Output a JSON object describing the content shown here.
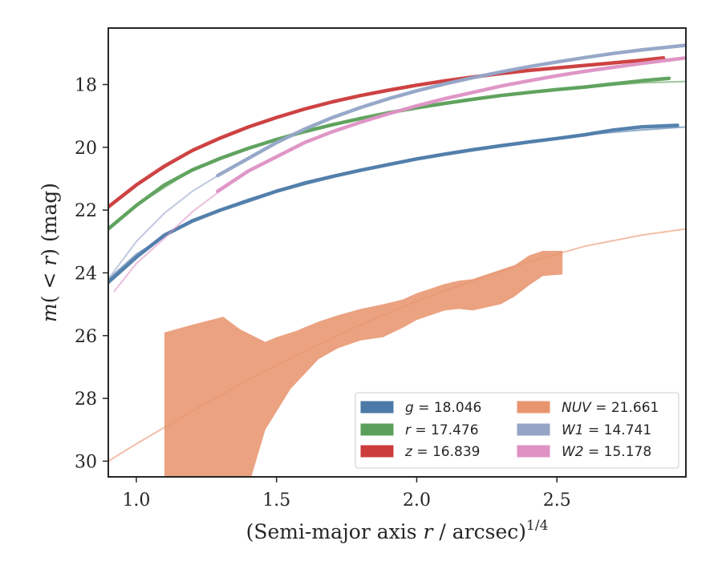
{
  "chart_data": {
    "type": "line",
    "xlabel": "(Semi-major axis r / arcsec)^{1/4}",
    "xlabel_parts": {
      "prefix": "(Semi-major axis ",
      "var": "r",
      "suffix": " / arcsec)",
      "exp": "1/4"
    },
    "ylabel": "m(<r) (mag)",
    "ylabel_parts": {
      "m": "m",
      "open": "(",
      "lt": " < ",
      "r": "r",
      "close": ")",
      "unit": " (mag)"
    },
    "xlim": [
      0.9,
      2.96
    ],
    "ylim": [
      30.5,
      16.2
    ],
    "y_inverted": true,
    "xticks": [
      1.0,
      1.5,
      2.0,
      2.5
    ],
    "xtick_labels": [
      "1.0",
      "1.5",
      "2.0",
      "2.5"
    ],
    "yticks": [
      18,
      20,
      22,
      24,
      26,
      28,
      30
    ],
    "ytick_labels": [
      "18",
      "20",
      "22",
      "24",
      "26",
      "28",
      "30"
    ],
    "grid": false,
    "legend_position": "lower-right",
    "series": [
      {
        "name": "g = 18.046",
        "band": "g",
        "value": "18.046",
        "color": "#4c7aa8",
        "data": [
          [
            0.9,
            24.3
          ],
          [
            1.0,
            23.5
          ],
          [
            1.1,
            22.8
          ],
          [
            1.2,
            22.35
          ],
          [
            1.3,
            22.0
          ],
          [
            1.4,
            21.7
          ],
          [
            1.5,
            21.4
          ],
          [
            1.6,
            21.15
          ],
          [
            1.7,
            20.93
          ],
          [
            1.8,
            20.73
          ],
          [
            1.9,
            20.55
          ],
          [
            2.0,
            20.37
          ],
          [
            2.1,
            20.22
          ],
          [
            2.2,
            20.08
          ],
          [
            2.3,
            19.95
          ],
          [
            2.4,
            19.83
          ],
          [
            2.5,
            19.72
          ],
          [
            2.6,
            19.6
          ],
          [
            2.7,
            19.45
          ],
          [
            2.8,
            19.35
          ],
          [
            2.93,
            19.3
          ]
        ],
        "model": [
          [
            0.9,
            24.2
          ],
          [
            1.0,
            23.4
          ],
          [
            1.2,
            22.3
          ],
          [
            1.4,
            21.65
          ],
          [
            1.6,
            21.1
          ],
          [
            1.8,
            20.7
          ],
          [
            2.0,
            20.35
          ],
          [
            2.2,
            20.05
          ],
          [
            2.4,
            19.8
          ],
          [
            2.6,
            19.6
          ],
          [
            2.8,
            19.45
          ],
          [
            2.96,
            19.35
          ]
        ]
      },
      {
        "name": "r = 17.476",
        "band": "r",
        "value": "17.476",
        "color": "#5ba05a",
        "data": [
          [
            0.9,
            22.6
          ],
          [
            1.0,
            21.85
          ],
          [
            1.1,
            21.2
          ],
          [
            1.2,
            20.72
          ],
          [
            1.3,
            20.35
          ],
          [
            1.4,
            20.03
          ],
          [
            1.5,
            19.75
          ],
          [
            1.6,
            19.5
          ],
          [
            1.7,
            19.28
          ],
          [
            1.8,
            19.08
          ],
          [
            1.9,
            18.9
          ],
          [
            2.0,
            18.74
          ],
          [
            2.1,
            18.6
          ],
          [
            2.2,
            18.47
          ],
          [
            2.3,
            18.35
          ],
          [
            2.4,
            18.25
          ],
          [
            2.5,
            18.16
          ],
          [
            2.6,
            18.08
          ],
          [
            2.7,
            17.98
          ],
          [
            2.8,
            17.88
          ],
          [
            2.9,
            17.8
          ]
        ],
        "model": [
          [
            0.9,
            22.6
          ],
          [
            1.0,
            21.85
          ],
          [
            1.2,
            20.72
          ],
          [
            1.4,
            20.03
          ],
          [
            1.6,
            19.5
          ],
          [
            1.8,
            19.08
          ],
          [
            2.0,
            18.74
          ],
          [
            2.2,
            18.47
          ],
          [
            2.4,
            18.25
          ],
          [
            2.6,
            18.08
          ],
          [
            2.8,
            17.95
          ],
          [
            2.96,
            17.9
          ]
        ]
      },
      {
        "name": "z = 16.839",
        "band": "z",
        "value": "16.839",
        "color": "#cc3c3c",
        "data": [
          [
            0.9,
            21.9
          ],
          [
            1.0,
            21.2
          ],
          [
            1.1,
            20.6
          ],
          [
            1.2,
            20.1
          ],
          [
            1.3,
            19.7
          ],
          [
            1.4,
            19.35
          ],
          [
            1.5,
            19.05
          ],
          [
            1.6,
            18.78
          ],
          [
            1.7,
            18.55
          ],
          [
            1.8,
            18.35
          ],
          [
            1.9,
            18.18
          ],
          [
            2.0,
            18.02
          ],
          [
            2.1,
            17.88
          ],
          [
            2.2,
            17.76
          ],
          [
            2.3,
            17.65
          ],
          [
            2.4,
            17.55
          ],
          [
            2.5,
            17.47
          ],
          [
            2.6,
            17.39
          ],
          [
            2.7,
            17.31
          ],
          [
            2.8,
            17.23
          ],
          [
            2.88,
            17.15
          ]
        ],
        "model": [
          [
            0.9,
            21.9
          ],
          [
            1.0,
            21.2
          ],
          [
            1.2,
            20.1
          ],
          [
            1.4,
            19.35
          ],
          [
            1.6,
            18.78
          ],
          [
            1.8,
            18.35
          ],
          [
            2.0,
            18.02
          ],
          [
            2.2,
            17.76
          ],
          [
            2.4,
            17.55
          ],
          [
            2.6,
            17.38
          ],
          [
            2.8,
            17.25
          ],
          [
            2.96,
            17.15
          ]
        ]
      },
      {
        "name": "NUV = 21.661",
        "band": "NUV",
        "value": "21.661",
        "color": "#e8956f",
        "band_upper": [
          [
            1.1,
            25.9
          ],
          [
            1.2,
            25.65
          ],
          [
            1.31,
            25.4
          ],
          [
            1.37,
            25.8
          ],
          [
            1.46,
            26.2
          ],
          [
            1.5,
            26.05
          ],
          [
            1.57,
            25.85
          ],
          [
            1.65,
            25.55
          ],
          [
            1.72,
            25.35
          ],
          [
            1.8,
            25.15
          ],
          [
            1.88,
            25.0
          ],
          [
            1.95,
            24.85
          ],
          [
            2.0,
            24.65
          ],
          [
            2.1,
            24.35
          ],
          [
            2.15,
            24.25
          ],
          [
            2.2,
            24.2
          ],
          [
            2.3,
            23.9
          ],
          [
            2.35,
            23.75
          ],
          [
            2.4,
            23.45
          ],
          [
            2.45,
            23.3
          ],
          [
            2.52,
            23.3
          ]
        ],
        "band_lower": [
          [
            1.1,
            30.5
          ],
          [
            1.41,
            30.5
          ],
          [
            1.46,
            29.0
          ],
          [
            1.55,
            27.7
          ],
          [
            1.65,
            26.75
          ],
          [
            1.72,
            26.4
          ],
          [
            1.8,
            26.15
          ],
          [
            1.88,
            26.05
          ],
          [
            1.95,
            25.75
          ],
          [
            2.0,
            25.5
          ],
          [
            2.1,
            25.2
          ],
          [
            2.15,
            25.15
          ],
          [
            2.2,
            25.2
          ],
          [
            2.3,
            25.0
          ],
          [
            2.35,
            24.75
          ],
          [
            2.4,
            24.4
          ],
          [
            2.45,
            24.1
          ],
          [
            2.52,
            24.05
          ]
        ],
        "model": [
          [
            0.9,
            30.0
          ],
          [
            1.0,
            29.45
          ],
          [
            1.2,
            28.4
          ],
          [
            1.4,
            27.4
          ],
          [
            1.6,
            26.5
          ],
          [
            1.8,
            25.65
          ],
          [
            2.0,
            24.9
          ],
          [
            2.2,
            24.25
          ],
          [
            2.4,
            23.65
          ],
          [
            2.6,
            23.15
          ],
          [
            2.8,
            22.8
          ],
          [
            2.96,
            22.6
          ]
        ]
      },
      {
        "name": "W1 = 14.741",
        "band": "W1",
        "value": "14.741",
        "color": "#94a5c6",
        "data": [
          [
            1.29,
            20.9
          ],
          [
            1.4,
            20.35
          ],
          [
            1.5,
            19.85
          ],
          [
            1.6,
            19.42
          ],
          [
            1.7,
            19.05
          ],
          [
            1.8,
            18.73
          ],
          [
            1.9,
            18.45
          ],
          [
            2.0,
            18.2
          ],
          [
            2.1,
            17.98
          ],
          [
            2.2,
            17.78
          ],
          [
            2.3,
            17.6
          ],
          [
            2.4,
            17.43
          ],
          [
            2.5,
            17.28
          ],
          [
            2.6,
            17.14
          ],
          [
            2.7,
            17.01
          ],
          [
            2.8,
            16.9
          ],
          [
            2.96,
            16.75
          ]
        ],
        "model": [
          [
            0.9,
            24.2
          ],
          [
            1.0,
            23.0
          ],
          [
            1.1,
            22.1
          ],
          [
            1.2,
            21.4
          ],
          [
            1.3,
            20.85
          ],
          [
            1.4,
            20.35
          ],
          [
            1.6,
            19.42
          ],
          [
            1.8,
            18.73
          ],
          [
            2.0,
            18.2
          ],
          [
            2.2,
            17.78
          ],
          [
            2.4,
            17.43
          ],
          [
            2.6,
            17.14
          ],
          [
            2.8,
            16.9
          ],
          [
            2.96,
            16.75
          ]
        ]
      },
      {
        "name": "W2 = 15.178",
        "band": "W2",
        "value": "15.178",
        "color": "#de92c4",
        "data": [
          [
            1.29,
            21.4
          ],
          [
            1.4,
            20.75
          ],
          [
            1.5,
            20.3
          ],
          [
            1.6,
            19.85
          ],
          [
            1.7,
            19.5
          ],
          [
            1.8,
            19.2
          ],
          [
            1.9,
            18.93
          ],
          [
            2.0,
            18.68
          ],
          [
            2.1,
            18.45
          ],
          [
            2.2,
            18.25
          ],
          [
            2.3,
            18.05
          ],
          [
            2.4,
            17.88
          ],
          [
            2.5,
            17.72
          ],
          [
            2.6,
            17.58
          ],
          [
            2.7,
            17.45
          ],
          [
            2.8,
            17.33
          ],
          [
            2.96,
            17.15
          ]
        ],
        "model": [
          [
            0.92,
            24.6
          ],
          [
            1.0,
            23.7
          ],
          [
            1.1,
            22.9
          ],
          [
            1.2,
            22.05
          ],
          [
            1.29,
            21.45
          ],
          [
            1.4,
            20.75
          ],
          [
            1.6,
            19.85
          ],
          [
            1.8,
            19.2
          ],
          [
            2.0,
            18.68
          ],
          [
            2.2,
            18.25
          ],
          [
            2.4,
            17.88
          ],
          [
            2.6,
            17.55
          ],
          [
            2.8,
            17.3
          ],
          [
            2.96,
            17.15
          ]
        ]
      }
    ],
    "legend_order": [
      [
        0,
        1,
        2
      ],
      [
        3,
        4,
        5
      ]
    ]
  }
}
